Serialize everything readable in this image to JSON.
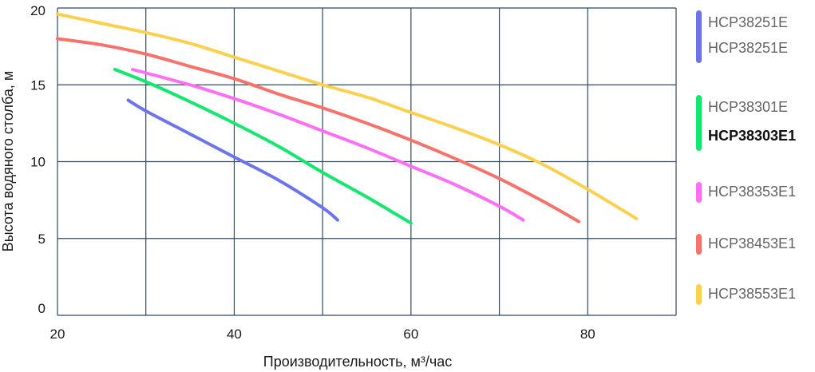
{
  "chart_data": {
    "type": "line",
    "xlabel": "Производительность, м³/час",
    "ylabel": "Высота водяного столба, м",
    "xlim": [
      20,
      90
    ],
    "ylim": [
      0,
      20
    ],
    "xticks": [
      20,
      40,
      60,
      80
    ],
    "yticks": [
      0,
      5,
      10,
      15,
      20
    ],
    "grid": true,
    "legend_position": "right",
    "series": [
      {
        "color": "#6b74ea",
        "x": [
          28,
          30,
          35,
          40,
          45,
          50,
          51.7
        ],
        "y": [
          14,
          13.3,
          11.8,
          10.3,
          8.8,
          7.0,
          6.2
        ]
      },
      {
        "color": "#14e66e",
        "x": [
          26.5,
          30,
          35,
          40,
          45,
          50,
          55,
          60
        ],
        "y": [
          16,
          15.2,
          13.9,
          12.5,
          11.0,
          9.3,
          7.7,
          6.0
        ]
      },
      {
        "color": "#ff6ef5",
        "x": [
          28.5,
          35,
          40,
          45,
          50,
          55,
          60,
          65,
          70,
          72.7
        ],
        "y": [
          16,
          15.0,
          14.1,
          13.1,
          12.0,
          10.9,
          9.7,
          8.5,
          7.1,
          6.2
        ]
      },
      {
        "color": "#f6726b",
        "x": [
          20,
          25,
          30,
          35,
          40,
          45,
          50,
          55,
          60,
          65,
          70,
          75,
          79
        ],
        "y": [
          18,
          17.6,
          17.0,
          16.2,
          15.4,
          14.4,
          13.5,
          12.5,
          11.4,
          10.2,
          8.9,
          7.4,
          6.1
        ]
      },
      {
        "color": "#fcd04f",
        "x": [
          20,
          25,
          30,
          35,
          40,
          45,
          50,
          55,
          60,
          65,
          70,
          75,
          80,
          85.5
        ],
        "y": [
          19.6,
          19.0,
          18.4,
          17.7,
          16.8,
          15.9,
          15.0,
          14.2,
          13.2,
          12.2,
          11.1,
          9.8,
          8.2,
          6.3
        ]
      }
    ]
  },
  "legend": {
    "groups": [
      {
        "color": "#6b74ea",
        "labels": [
          {
            "text": "HCP38251E",
            "bold": false
          },
          {
            "text": "HCP38251E",
            "bold": false
          }
        ]
      },
      {
        "color": "#14e66e",
        "labels": [
          {
            "text": "HCP38301E",
            "bold": false
          },
          {
            "text": "HCP38303E1",
            "bold": true
          }
        ]
      },
      {
        "color": "#ff6ef5",
        "labels": [
          {
            "text": "HCP38353E1",
            "bold": false
          }
        ]
      },
      {
        "color": "#f6726b",
        "labels": [
          {
            "text": "HCP38453E1",
            "bold": false
          }
        ]
      },
      {
        "color": "#fcd04f",
        "labels": [
          {
            "text": "HCP38553E1",
            "bold": false
          }
        ]
      }
    ]
  },
  "colors": {
    "grid": "#2f4a63",
    "background": "#ffffff"
  }
}
